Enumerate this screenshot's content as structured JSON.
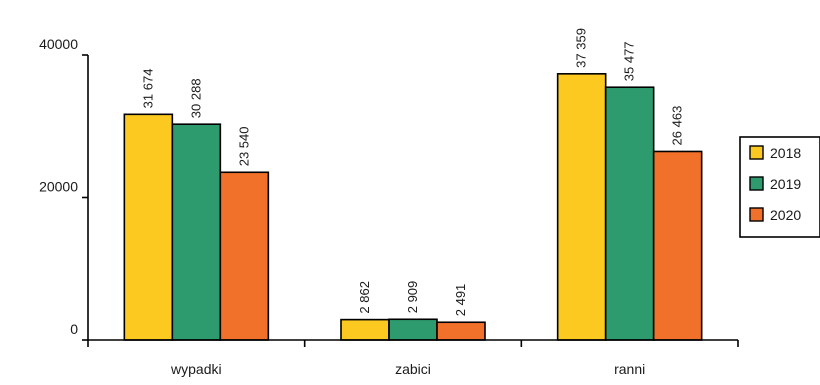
{
  "chart_data": {
    "type": "bar",
    "categories": [
      "wypadki",
      "zabici",
      "ranni"
    ],
    "series": [
      {
        "name": "2018",
        "values": [
          31674,
          2862,
          37359
        ],
        "labels": [
          "31 674",
          "2 862",
          "37 359"
        ],
        "color": "#FCC921"
      },
      {
        "name": "2019",
        "values": [
          30288,
          2909,
          35477
        ],
        "labels": [
          "30 288",
          "2 909",
          "35 477"
        ],
        "color": "#2E9B6E"
      },
      {
        "name": "2020",
        "values": [
          23540,
          2491,
          26463
        ],
        "labels": [
          "23 540",
          "2 491",
          "26 463"
        ],
        "color": "#F2712A"
      }
    ],
    "yticks": [
      0,
      20000,
      40000
    ],
    "ytick_labels": [
      "0",
      "20000",
      "40000"
    ],
    "ylim": [
      0,
      40000
    ],
    "title": "",
    "xlabel": "",
    "ylabel": "",
    "grid": false,
    "legend_position": "right"
  }
}
